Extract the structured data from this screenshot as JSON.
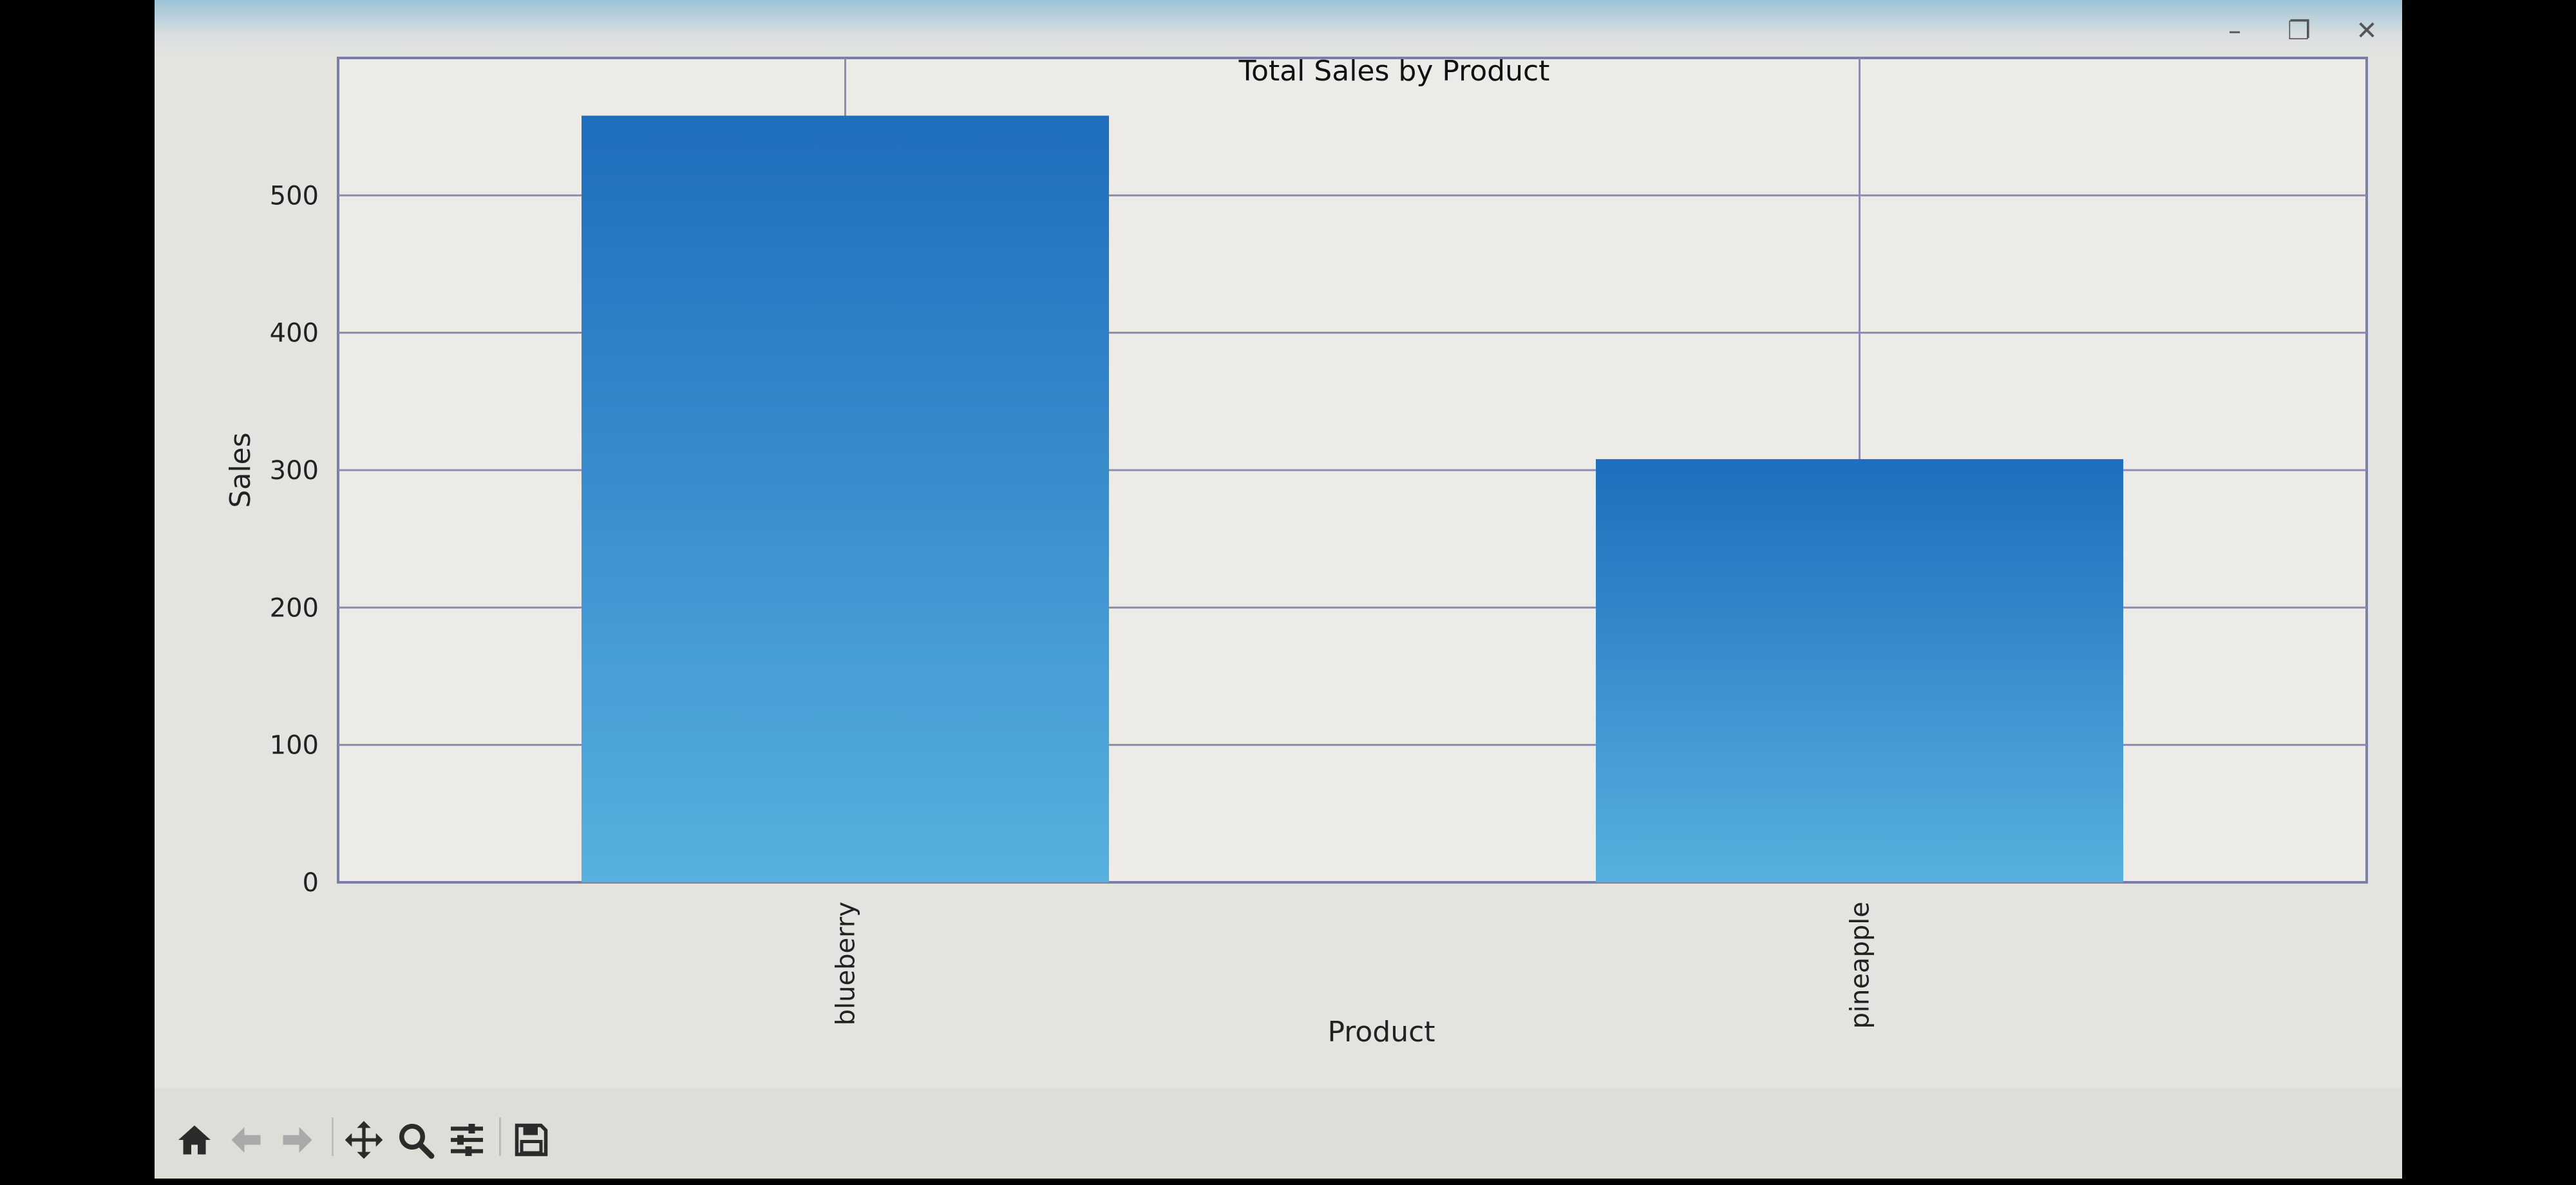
{
  "window": {
    "minimize_icon": "minimize-icon",
    "maximize_icon": "maximize-icon",
    "close_icon": "close-icon"
  },
  "chart_data": {
    "type": "bar",
    "title": "Total Sales by Product",
    "xlabel": "Product",
    "ylabel": "Sales",
    "categories": [
      "blueberry",
      "pineapple"
    ],
    "values": [
      558,
      308
    ],
    "ylim": [
      0,
      600
    ],
    "yticks": [
      0,
      100,
      200,
      300,
      400,
      500
    ],
    "grid": true,
    "bar_color_top": "#1f6dbd",
    "bar_color_bottom": "#57b0de"
  },
  "toolbar": {
    "icons": [
      "home-icon",
      "back-icon",
      "forward-icon",
      "pan-icon",
      "zoom-icon",
      "configure-icon",
      "save-icon"
    ]
  }
}
